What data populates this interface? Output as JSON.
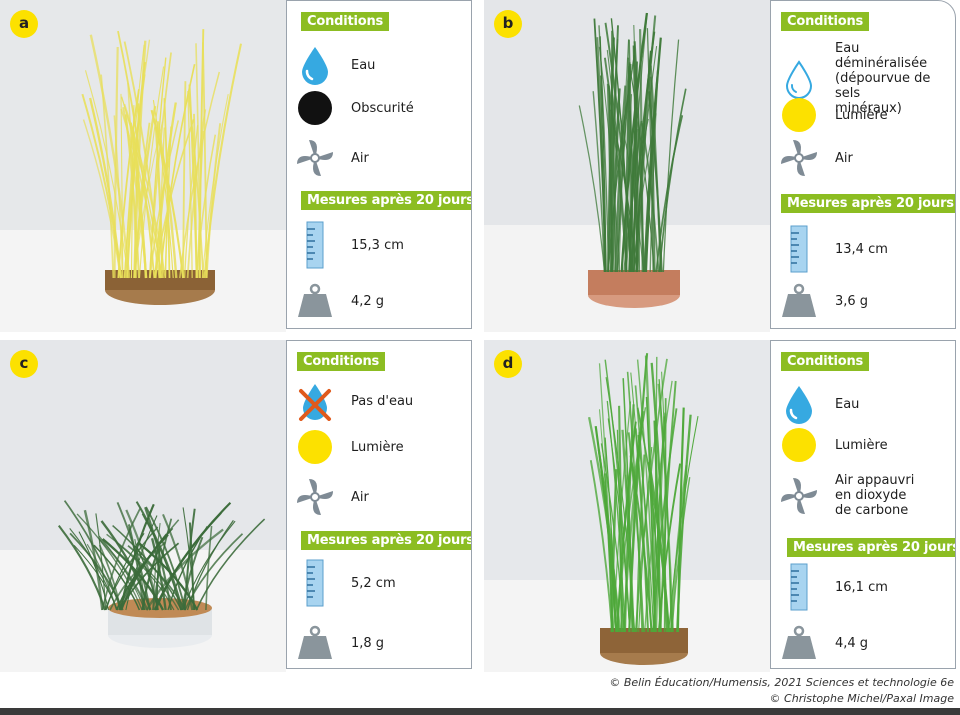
{
  "panels": [
    {
      "letter": "a",
      "conditions_label": "Conditions",
      "conditions": [
        {
          "icon": "water-drop-icon",
          "label": "Eau"
        },
        {
          "icon": "darkness-icon",
          "label": "Obscurité"
        },
        {
          "icon": "air-fan-icon",
          "label": "Air"
        }
      ],
      "measures_label": "Mesures après 20 jours",
      "height": "15,3 cm",
      "mass": "4,2 g",
      "photo": {
        "grass_color": "#e8df5a",
        "dish": "brown"
      }
    },
    {
      "letter": "b",
      "conditions_label": "Conditions",
      "conditions": [
        {
          "icon": "demineralized-water-drop-icon",
          "label": "Eau déminéralisée\n(dépourvue de sels\nminéraux)"
        },
        {
          "icon": "light-icon",
          "label": "Lumière"
        },
        {
          "icon": "air-fan-icon",
          "label": "Air"
        }
      ],
      "measures_label": "Mesures après 20 jours",
      "height": "13,4 cm",
      "mass": "3,6 g",
      "photo": {
        "grass_color": "#3f7a3a",
        "dish": "copper"
      }
    },
    {
      "letter": "c",
      "conditions_label": "Conditions",
      "conditions": [
        {
          "icon": "no-water-icon",
          "label": "Pas d'eau"
        },
        {
          "icon": "light-icon",
          "label": "Lumière"
        },
        {
          "icon": "air-fan-icon",
          "label": "Air"
        }
      ],
      "measures_label": "Mesures après 20 jours",
      "height": "5,2 cm",
      "mass": "1,8 g",
      "photo": {
        "grass_color": "#3b6b3a",
        "dish": "white"
      }
    },
    {
      "letter": "d",
      "conditions_label": "Conditions",
      "conditions": [
        {
          "icon": "water-drop-icon",
          "label": "Eau"
        },
        {
          "icon": "light-icon",
          "label": "Lumière"
        },
        {
          "icon": "air-fan-icon",
          "label": "Air appauvri\nen dioxyde\nde carbone"
        }
      ],
      "measures_label": "Mesures après 20 jours",
      "height": "16,1 cm",
      "mass": "4,4 g",
      "photo": {
        "grass_color": "#4ea83a",
        "dish": "brown"
      }
    }
  ],
  "credits": {
    "line1": "© Belin Éducation/Humensis, 2021 Sciences et technologie 6e",
    "line2": "© Christophe Michel/Paxal Image"
  },
  "colors": {
    "accent_green": "#8cbd22",
    "badge_yellow": "#fce100",
    "water_blue": "#36a9e1",
    "ruler_blue": "#a8d4f0",
    "weight_gray": "#8a959c"
  }
}
